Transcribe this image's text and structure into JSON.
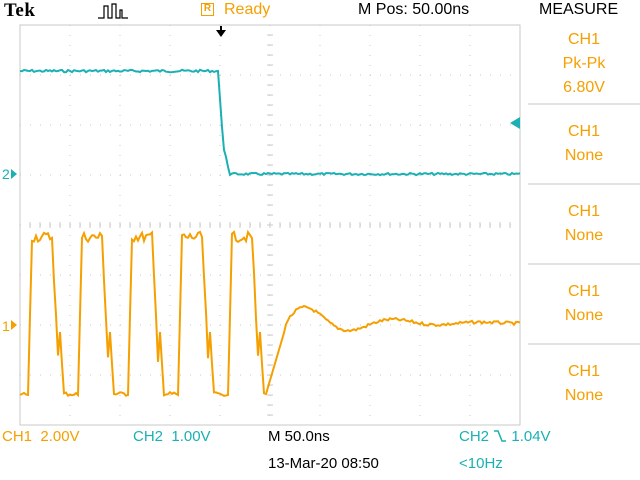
{
  "header": {
    "brand": "Tek",
    "trigger_icon": "pulse-trigger-icon",
    "acq_box": "R",
    "acq_status": "Ready",
    "position": "M Pos: 50.00ns",
    "menu_title": "MEASURE"
  },
  "markers": {
    "ch2": "2",
    "ch1": "1"
  },
  "measurements": [
    {
      "source": "CH1",
      "type": "Pk-Pk",
      "value": "6.80V"
    },
    {
      "source": "CH1",
      "type": "None"
    },
    {
      "source": "CH1",
      "type": "None"
    },
    {
      "source": "CH1",
      "type": "None"
    },
    {
      "source": "CH1",
      "type": "None"
    }
  ],
  "footer": {
    "ch1_label": "CH1",
    "ch1_scale": "2.00V",
    "ch2_label": "CH2",
    "ch2_scale": "1.00V",
    "timebase": "M 50.0ns",
    "date": "13-Mar-20 08:50",
    "trigger_source": "CH2",
    "trigger_slope_icon": "falling-edge-icon",
    "trigger_level": "1.04V",
    "trigger_freq": "<10Hz"
  },
  "colors": {
    "ch1": "#f5a000",
    "ch2": "#1ab0b4",
    "grid": "#c8c8c8"
  }
}
